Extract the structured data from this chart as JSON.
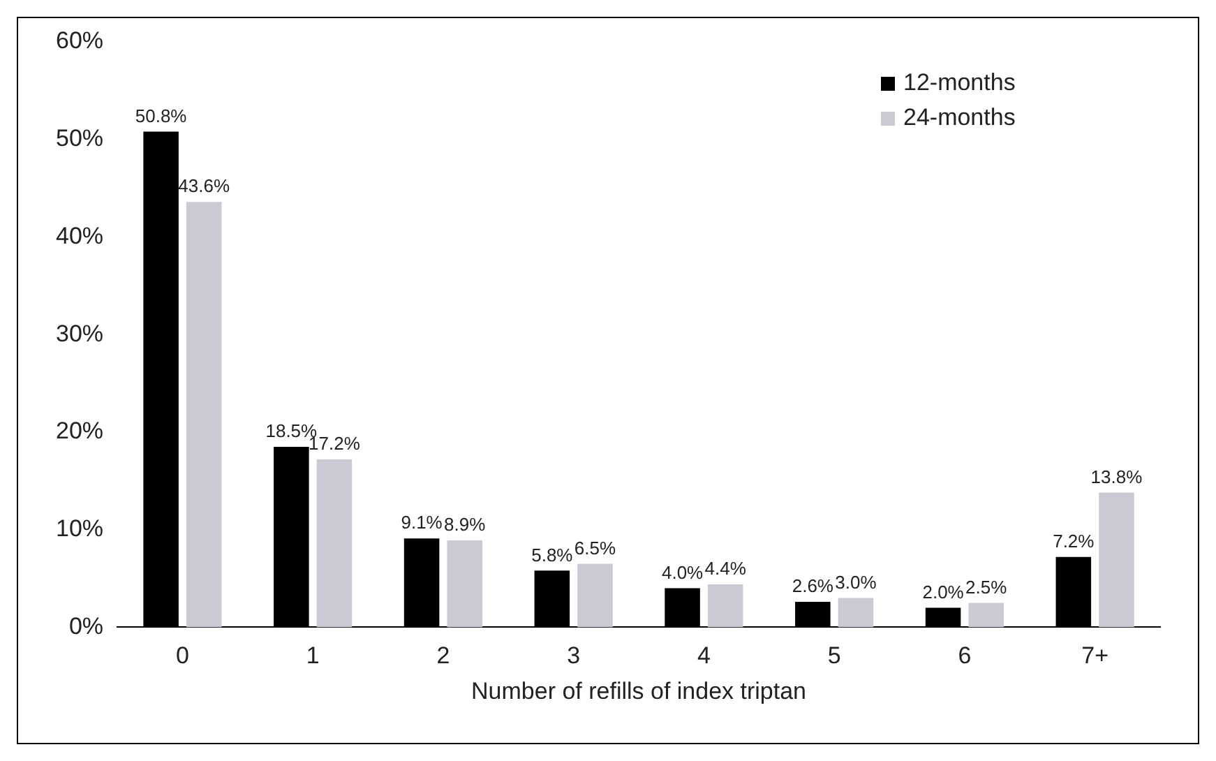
{
  "chart_data": {
    "type": "bar",
    "xlabel": "Number of refills of index triptan",
    "categories": [
      "0",
      "1",
      "2",
      "3",
      "4",
      "5",
      "6",
      "7+"
    ],
    "series": [
      {
        "name": "12-months",
        "color": "#000000",
        "values": [
          50.8,
          18.5,
          9.1,
          5.8,
          4.0,
          2.6,
          2.0,
          7.2
        ],
        "value_labels": [
          "50.8%",
          "18.5%",
          "9.1%",
          "5.8%",
          "4.0%",
          "2.6%",
          "2.0%",
          "7.2%"
        ]
      },
      {
        "name": "24-months",
        "color": "#c9cad4",
        "values": [
          43.6,
          17.2,
          8.9,
          6.5,
          4.4,
          3.0,
          2.5,
          13.8
        ],
        "value_labels": [
          "43.6%",
          "17.2%",
          "8.9%",
          "6.5%",
          "4.4%",
          "3.0%",
          "2.5%",
          "13.8%"
        ]
      }
    ],
    "ylim": [
      0,
      60
    ],
    "yticks": [
      {
        "value": 0,
        "label": "0%"
      },
      {
        "value": 10,
        "label": "10%"
      },
      {
        "value": 20,
        "label": "20%"
      },
      {
        "value": 30,
        "label": "30%"
      },
      {
        "value": 40,
        "label": "40%"
      },
      {
        "value": 50,
        "label": "50%"
      },
      {
        "value": 60,
        "label": "60%"
      }
    ],
    "grid": false,
    "legend": "top right"
  }
}
